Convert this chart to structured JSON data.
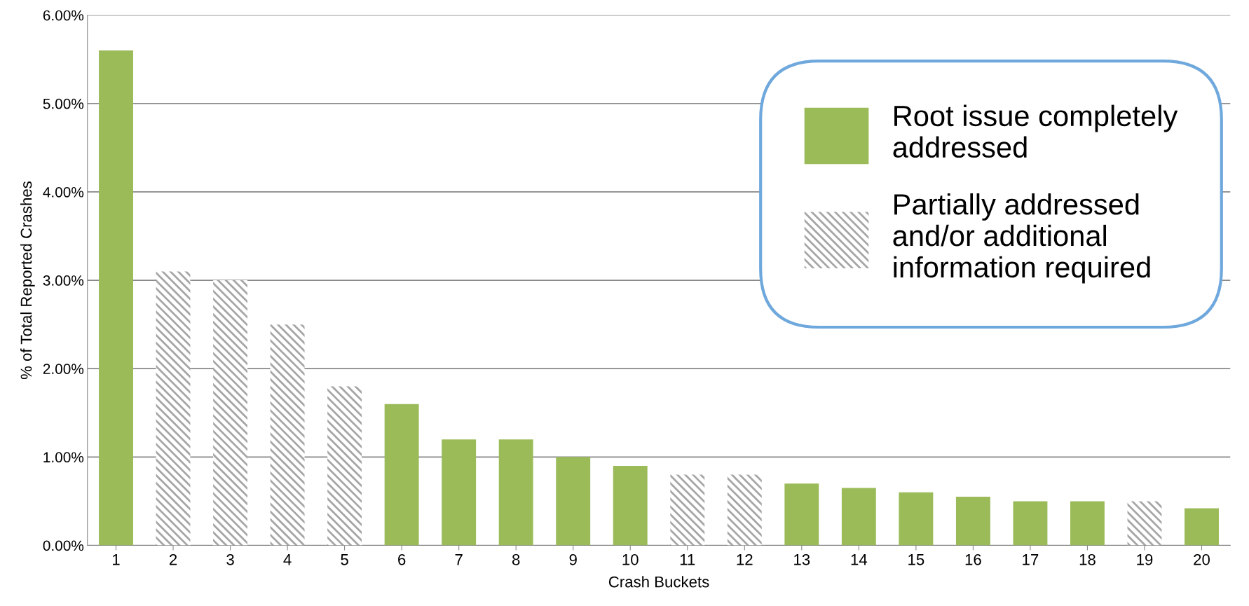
{
  "chart_data": {
    "type": "bar",
    "xlabel": "Crash Buckets",
    "ylabel": "% of Total Reported Crashes",
    "categories": [
      "1",
      "2",
      "3",
      "4",
      "5",
      "6",
      "7",
      "8",
      "9",
      "10",
      "11",
      "12",
      "13",
      "14",
      "15",
      "16",
      "17",
      "18",
      "19",
      "20"
    ],
    "series": [
      {
        "name": "Root issue completely addressed",
        "color": "#9bbb59",
        "values": [
          5.6,
          null,
          null,
          null,
          null,
          1.6,
          1.2,
          1.2,
          1.0,
          0.9,
          null,
          null,
          0.7,
          0.65,
          0.6,
          0.55,
          0.5,
          0.5,
          null,
          0.42
        ]
      },
      {
        "name": "Partially addressed and/or additional information required",
        "color": "#a6a6a6",
        "values": [
          null,
          3.1,
          3.0,
          2.5,
          1.8,
          null,
          null,
          null,
          null,
          null,
          0.8,
          0.8,
          null,
          null,
          null,
          null,
          null,
          null,
          0.5,
          null
        ]
      }
    ],
    "ylim": [
      0,
      6
    ],
    "yticks": [
      {
        "value": 0,
        "label": "0.00%"
      },
      {
        "value": 1,
        "label": "1.00%"
      },
      {
        "value": 2,
        "label": "2.00%"
      },
      {
        "value": 3,
        "label": "3.00%"
      },
      {
        "value": 4,
        "label": "4.00%"
      },
      {
        "value": 5,
        "label": "5.00%"
      },
      {
        "value": 6,
        "label": "6.00%"
      }
    ],
    "grid": "y",
    "legend": "top right"
  }
}
